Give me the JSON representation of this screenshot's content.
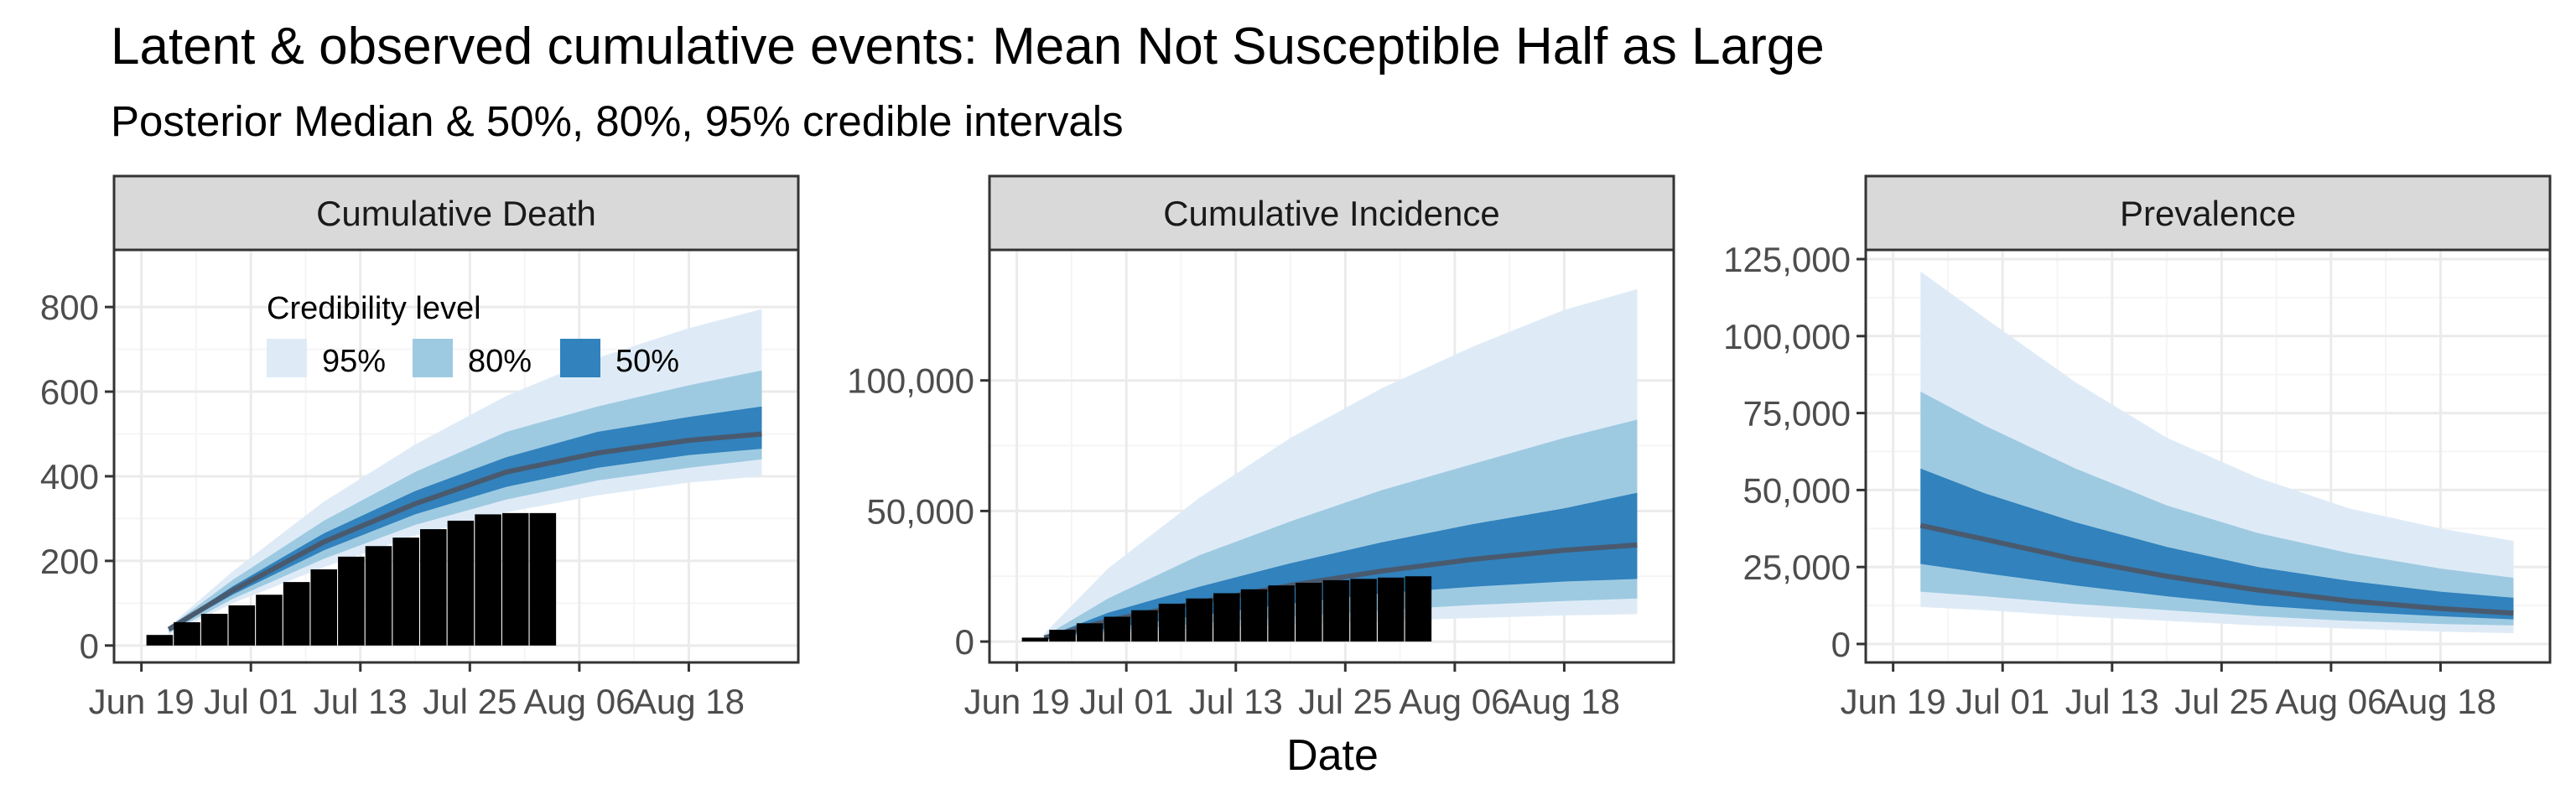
{
  "title": "Latent & observed cumulative events: Mean Not Susceptible Half as Large",
  "subtitle": "Posterior Median & 50%, 80%, 95% credible intervals",
  "xlabel": "Date",
  "legend": {
    "title": "Credibility level",
    "items": [
      {
        "label": "95%",
        "color": "#deebf7"
      },
      {
        "label": "80%",
        "color": "#9ecae1"
      },
      {
        "label": "50%",
        "color": "#3182bd"
      }
    ]
  },
  "colors": {
    "ci95": "#deebf7",
    "ci80": "#9ecae1",
    "ci50": "#3182bd",
    "median": "#4a5a6e",
    "bars": "#000000",
    "strip": "#d9d9d9",
    "grid_major": "#ebebeb",
    "grid_minor": "#f5f5f5"
  },
  "chart_data": [
    {
      "type": "area",
      "panel": "Cumulative Death",
      "x_ticks": [
        "Jun 19",
        "Jul 01",
        "Jul 13",
        "Jul 25",
        "Aug 06",
        "Aug 18"
      ],
      "y_ticks": [
        "0",
        "200",
        "400",
        "600",
        "800"
      ],
      "y_tick_values": [
        0,
        200,
        400,
        600,
        800
      ],
      "ylim": [
        -40,
        935
      ],
      "xlim_day": [
        -3,
        72
      ],
      "grid": true,
      "legend_position": "top-left",
      "bands": {
        "days": [
          3,
          10,
          20,
          30,
          40,
          50,
          60,
          68
        ],
        "q025": [
          25,
          100,
          185,
          260,
          315,
          355,
          385,
          400
        ],
        "q10": [
          30,
          110,
          205,
          285,
          345,
          390,
          420,
          440
        ],
        "q25": [
          35,
          120,
          225,
          310,
          375,
          420,
          450,
          465
        ],
        "median": [
          38,
          130,
          245,
          335,
          410,
          455,
          485,
          500
        ],
        "q75": [
          40,
          140,
          265,
          365,
          445,
          505,
          540,
          565
        ],
        "q90": [
          43,
          155,
          295,
          410,
          505,
          565,
          615,
          650
        ],
        "q975": [
          45,
          175,
          340,
          475,
          590,
          680,
          750,
          795
        ]
      },
      "bars": {
        "days": [
          2,
          5,
          8,
          11,
          14,
          17,
          20,
          23,
          26,
          29,
          32,
          35,
          38,
          41,
          44
        ],
        "values": [
          25,
          55,
          75,
          95,
          120,
          150,
          180,
          210,
          235,
          255,
          275,
          295,
          310,
          313,
          313
        ]
      }
    },
    {
      "type": "area",
      "panel": "Cumulative Incidence",
      "x_ticks": [
        "Jun 19",
        "Jul 01",
        "Jul 13",
        "Jul 25",
        "Aug 06",
        "Aug 18"
      ],
      "y_ticks": [
        "0",
        "50,000",
        "100,000"
      ],
      "y_tick_values": [
        0,
        50000,
        100000
      ],
      "ylim": [
        -8000,
        150000
      ],
      "xlim_day": [
        -3,
        72
      ],
      "grid": true,
      "bands": {
        "days": [
          3,
          10,
          20,
          30,
          40,
          50,
          60,
          68
        ],
        "q025": [
          1000,
          3000,
          5000,
          6500,
          8000,
          9000,
          10000,
          10500
        ],
        "q10": [
          1100,
          4000,
          7000,
          9500,
          12000,
          14000,
          15500,
          16500
        ],
        "q25": [
          1200,
          5000,
          10000,
          14500,
          18500,
          21000,
          23000,
          24000
        ],
        "median": [
          1400,
          8000,
          15000,
          21500,
          27000,
          31500,
          35000,
          37000
        ],
        "q75": [
          1600,
          11000,
          21000,
          30000,
          38000,
          45000,
          51000,
          57000
        ],
        "q90": [
          2000,
          16500,
          33000,
          46000,
          58000,
          68000,
          78000,
          85000
        ],
        "q975": [
          3000,
          28000,
          55000,
          78000,
          97000,
          113000,
          127000,
          135000
        ]
      },
      "bars": {
        "days": [
          2,
          5,
          8,
          11,
          14,
          17,
          20,
          23,
          26,
          29,
          32,
          35,
          38,
          41,
          44
        ],
        "values": [
          1500,
          4500,
          7000,
          9500,
          12000,
          14500,
          16500,
          18500,
          20000,
          21500,
          22500,
          23500,
          24000,
          24500,
          25000
        ]
      }
    },
    {
      "type": "area",
      "panel": "Prevalence",
      "x_ticks": [
        "Jun 19",
        "Jul 01",
        "Jul 13",
        "Jul 25",
        "Aug 06",
        "Aug 18"
      ],
      "y_ticks": [
        "0",
        "25,000",
        "50,000",
        "75,000",
        "100,000",
        "125,000"
      ],
      "y_tick_values": [
        0,
        25000,
        50000,
        75000,
        100000,
        125000
      ],
      "ylim": [
        -6000,
        128000
      ],
      "xlim_day": [
        -3,
        72
      ],
      "grid": true,
      "bands": {
        "days": [
          3,
          10,
          20,
          30,
          40,
          50,
          60,
          68
        ],
        "q025": [
          12000,
          11000,
          9000,
          7500,
          6000,
          5000,
          4000,
          3500
        ],
        "q10": [
          17000,
          15500,
          13000,
          11000,
          9000,
          7500,
          6500,
          6000
        ],
        "q25": [
          26000,
          23000,
          19000,
          15500,
          12500,
          10500,
          9000,
          8000
        ],
        "median": [
          38500,
          34000,
          27500,
          22000,
          17500,
          14000,
          11500,
          10000
        ],
        "q75": [
          57000,
          49000,
          39500,
          31500,
          25000,
          20500,
          17000,
          15000
        ],
        "q90": [
          82000,
          71000,
          57000,
          45000,
          36000,
          29500,
          24500,
          21500
        ],
        "q975": [
          121000,
          106000,
          85000,
          67000,
          54000,
          44000,
          37500,
          33500
        ]
      }
    }
  ]
}
